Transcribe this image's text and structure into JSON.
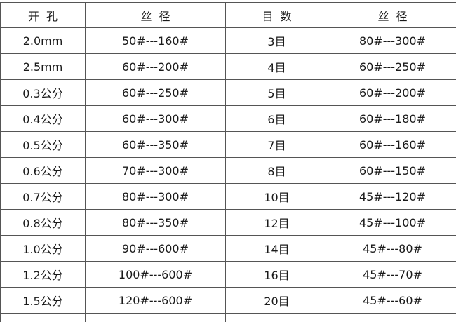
{
  "table": {
    "headers": [
      "开孔",
      "丝径",
      "目数",
      "丝径"
    ],
    "rows": [
      [
        "2.0mm",
        "50#---160#",
        "3目",
        "80#---300#"
      ],
      [
        "2.5mm",
        "60#---200#",
        "4目",
        "60#---250#"
      ],
      [
        "0.3公分",
        "60#---250#",
        "5目",
        "60#---200#"
      ],
      [
        "0.4公分",
        "60#---300#",
        "6目",
        "60#---180#"
      ],
      [
        "0.5公分",
        "60#---350#",
        "7目",
        "60#---160#"
      ],
      [
        "0.6公分",
        "70#---300#",
        "8目",
        "60#---150#"
      ],
      [
        "0.7公分",
        "80#---300#",
        "10目",
        "45#---120#"
      ],
      [
        "0.8公分",
        "80#---350#",
        "12目",
        "45#---100#"
      ],
      [
        "1.0公分",
        "90#---600#",
        "14目",
        "45#---80#"
      ],
      [
        "1.2公分",
        "100#---600#",
        "16目",
        "45#---70#"
      ],
      [
        "1.5公分",
        "120#---600#",
        "20目",
        "45#---60#"
      ]
    ]
  }
}
